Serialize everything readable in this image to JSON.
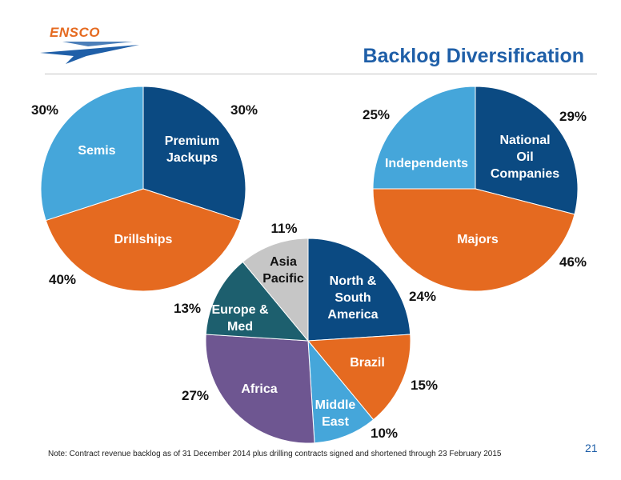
{
  "logo": {
    "text": "ENSCO"
  },
  "title": "Backlog Diversification",
  "note": "Note: Contract revenue backlog as of 31 December 2014 plus drilling contracts signed and shortened through 23 February 2015",
  "page_number": "21",
  "colors": {
    "navy": "#0b4a82",
    "orange": "#e56a20",
    "light_blue": "#45a6da",
    "teal": "#1d5f6e",
    "purple": "#6e5691",
    "gray": "#c6c6c6",
    "title": "#1f5fa8"
  },
  "chart_data": [
    {
      "type": "pie",
      "title": "",
      "slices": [
        {
          "label": "Premium Jackups",
          "value": 30,
          "pct_label": "30%",
          "color": "#0b4a82"
        },
        {
          "label": "Drillships",
          "value": 40,
          "pct_label": "40%",
          "color": "#e56a20"
        },
        {
          "label": "Semis",
          "value": 30,
          "pct_label": "30%",
          "color": "#45a6da"
        }
      ]
    },
    {
      "type": "pie",
      "title": "",
      "slices": [
        {
          "label": "National Oil Companies",
          "value": 29,
          "pct_label": "29%",
          "color": "#0b4a82"
        },
        {
          "label": "Majors",
          "value": 46,
          "pct_label": "46%",
          "color": "#e56a20"
        },
        {
          "label": "Independents",
          "value": 25,
          "pct_label": "25%",
          "color": "#45a6da"
        }
      ]
    },
    {
      "type": "pie",
      "title": "",
      "slices": [
        {
          "label": "North & South America",
          "value": 24,
          "pct_label": "24%",
          "color": "#0b4a82"
        },
        {
          "label": "Brazil",
          "value": 15,
          "pct_label": "15%",
          "color": "#e56a20"
        },
        {
          "label": "Middle East",
          "value": 10,
          "pct_label": "10%",
          "color": "#45a6da"
        },
        {
          "label": "Africa",
          "value": 27,
          "pct_label": "27%",
          "color": "#6e5691"
        },
        {
          "label": "Europe & Med",
          "value": 13,
          "pct_label": "13%",
          "color": "#1d5f6e"
        },
        {
          "label": "Asia Pacific",
          "value": 11,
          "pct_label": "11%",
          "color": "#c6c6c6"
        }
      ]
    }
  ]
}
